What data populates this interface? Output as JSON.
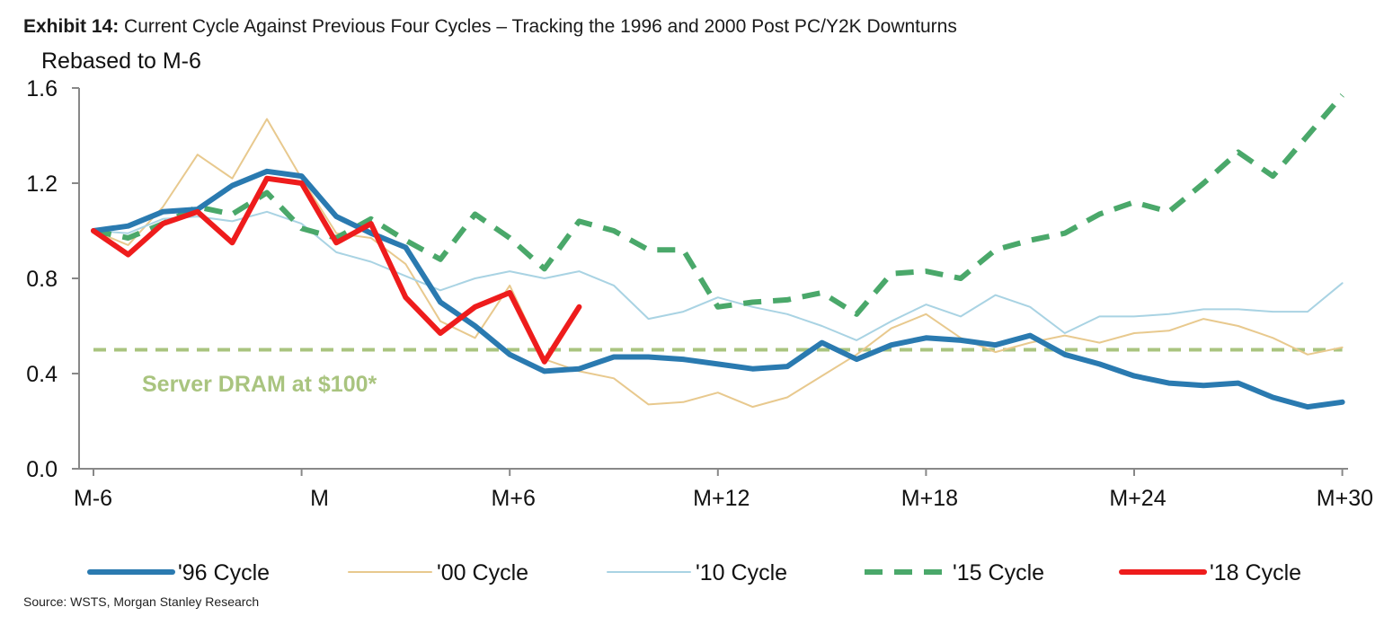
{
  "title": {
    "label": "Exhibit 14:",
    "text": "Current Cycle Against Previous Four Cycles – Tracking the 1996 and 2000 Post PC/Y2K Downturns"
  },
  "source": "Source: WSTS, Morgan Stanley Research",
  "chart_data": {
    "type": "line",
    "ylabel": "Rebased to M-6",
    "ylim": [
      0.0,
      1.6
    ],
    "yticks": [
      0.0,
      0.4,
      0.8,
      1.2,
      1.6
    ],
    "ytick_labels": [
      "0.0",
      "0.4",
      "0.8",
      "1.2",
      "1.6"
    ],
    "xlim": [
      -6,
      30
    ],
    "xticks": [
      -6,
      0,
      6,
      12,
      18,
      24,
      30
    ],
    "xtick_labels": [
      "M-6",
      "M",
      "M+6",
      "M+12",
      "M+18",
      "M+24",
      "M+30"
    ],
    "grid": false,
    "legend_position": "bottom",
    "reference_line": {
      "value": 0.5,
      "label": "Server DRAM at $100*",
      "color": "#a9c47f"
    },
    "series": [
      {
        "name": "'96 Cycle",
        "color": "#2a7ab0",
        "style": "solid-thick",
        "values": [
          1.0,
          1.02,
          1.08,
          1.09,
          1.19,
          1.25,
          1.23,
          1.06,
          0.99,
          0.93,
          0.7,
          0.6,
          0.48,
          0.41,
          0.42,
          0.47,
          0.47,
          0.46,
          0.44,
          0.42,
          0.43,
          0.53,
          0.46,
          0.52,
          0.55,
          0.54,
          0.52,
          0.56,
          0.48,
          0.44,
          0.39,
          0.36,
          0.35,
          0.36,
          0.3,
          0.26,
          0.28
        ]
      },
      {
        "name": "'00 Cycle",
        "color": "#e8c98e",
        "style": "solid-thin",
        "values": [
          1.0,
          0.94,
          1.1,
          1.32,
          1.22,
          1.47,
          1.22,
          0.99,
          0.97,
          0.86,
          0.62,
          0.55,
          0.77,
          0.46,
          0.41,
          0.38,
          0.27,
          0.28,
          0.32,
          0.26,
          0.3,
          0.39,
          0.48,
          0.59,
          0.65,
          0.55,
          0.49,
          0.53,
          0.56,
          0.53,
          0.57,
          0.58,
          0.63,
          0.6,
          0.55,
          0.48,
          0.51
        ]
      },
      {
        "name": "'10 Cycle",
        "color": "#a9d3e3",
        "style": "solid-thin",
        "values": [
          1.0,
          0.99,
          1.05,
          1.06,
          1.04,
          1.08,
          1.03,
          0.91,
          0.87,
          0.81,
          0.75,
          0.8,
          0.83,
          0.8,
          0.83,
          0.77,
          0.63,
          0.66,
          0.72,
          0.68,
          0.65,
          0.6,
          0.54,
          0.62,
          0.69,
          0.64,
          0.73,
          0.68,
          0.57,
          0.64,
          0.64,
          0.65,
          0.67,
          0.67,
          0.66,
          0.66,
          0.78
        ]
      },
      {
        "name": "'15 Cycle",
        "color": "#4aa86a",
        "style": "dashed",
        "values": [
          1.0,
          0.97,
          1.03,
          1.1,
          1.07,
          1.16,
          1.01,
          0.97,
          1.05,
          0.96,
          0.88,
          1.07,
          0.97,
          0.84,
          1.04,
          1.0,
          0.92,
          0.92,
          0.68,
          0.7,
          0.71,
          0.74,
          0.65,
          0.82,
          0.83,
          0.8,
          0.92,
          0.96,
          0.99,
          1.07,
          1.12,
          1.08,
          1.2,
          1.33,
          1.23,
          1.4,
          1.57
        ]
      },
      {
        "name": "'18 Cycle",
        "color": "#ee1c1c",
        "style": "solid-thick",
        "values": [
          1.0,
          0.9,
          1.03,
          1.08,
          0.95,
          1.22,
          1.2,
          0.95,
          1.03,
          0.72,
          0.57,
          0.68,
          0.74,
          0.45,
          0.68
        ]
      }
    ]
  }
}
